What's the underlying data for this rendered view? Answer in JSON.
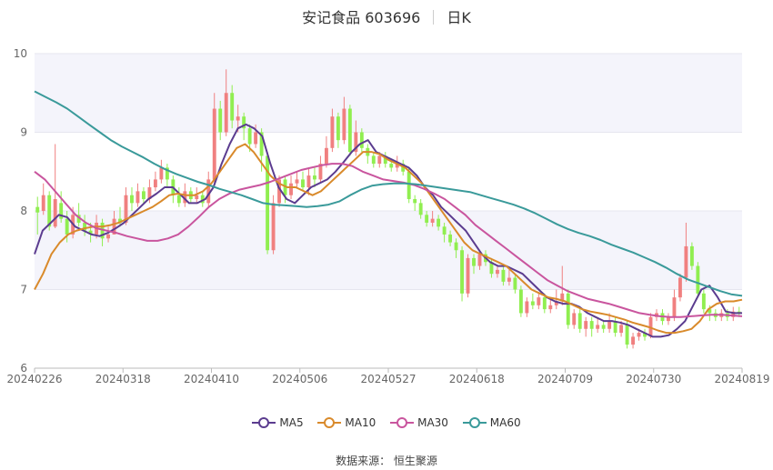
{
  "chart_data": {
    "type": "candlestick",
    "title_name": "安记食品 603696",
    "title_period": "日K",
    "ylim": [
      6,
      10
    ],
    "yticks": [
      "10",
      "9",
      "8",
      "7",
      "6"
    ],
    "xticks": [
      "20240226",
      "20240318",
      "20240410",
      "20240506",
      "20240527",
      "20240618",
      "20240709",
      "20240730",
      "20240819"
    ],
    "up_color": "#f08080",
    "down_color": "#90ee50",
    "candles": [
      [
        8.05,
        7.98,
        8.18,
        7.7
      ],
      [
        8.0,
        8.2,
        8.35,
        7.95
      ],
      [
        8.2,
        7.8,
        8.25,
        7.75
      ],
      [
        7.8,
        8.15,
        8.85,
        7.78
      ],
      [
        8.1,
        7.9,
        8.25,
        7.85
      ],
      [
        7.9,
        7.7,
        8.0,
        7.6
      ],
      [
        7.7,
        7.95,
        8.05,
        7.65
      ],
      [
        7.95,
        7.85,
        8.1,
        7.8
      ],
      [
        7.85,
        7.75,
        7.95,
        7.68
      ],
      [
        7.75,
        7.7,
        7.85,
        7.6
      ],
      [
        7.7,
        7.85,
        7.95,
        7.65
      ],
      [
        7.85,
        7.65,
        7.9,
        7.55
      ],
      [
        7.65,
        7.7,
        7.8,
        7.6
      ],
      [
        7.7,
        7.9,
        8.0,
        7.7
      ],
      [
        7.9,
        7.85,
        8.05,
        7.8
      ],
      [
        7.85,
        8.2,
        8.3,
        7.82
      ],
      [
        8.2,
        8.1,
        8.3,
        8.0
      ],
      [
        8.1,
        8.25,
        8.35,
        8.05
      ],
      [
        8.25,
        8.15,
        8.3,
        8.1
      ],
      [
        8.15,
        8.3,
        8.4,
        8.1
      ],
      [
        8.3,
        8.4,
        8.5,
        8.25
      ],
      [
        8.4,
        8.55,
        8.65,
        8.35
      ],
      [
        8.55,
        8.4,
        8.6,
        8.3
      ],
      [
        8.4,
        8.2,
        8.45,
        8.1
      ],
      [
        8.2,
        8.1,
        8.3,
        8.05
      ],
      [
        8.1,
        8.25,
        8.35,
        8.05
      ],
      [
        8.25,
        8.15,
        8.3,
        8.1
      ],
      [
        8.15,
        8.2,
        8.3,
        8.1
      ],
      [
        8.2,
        8.1,
        8.25,
        8.05
      ],
      [
        8.1,
        8.4,
        8.5,
        8.05
      ],
      [
        8.4,
        9.3,
        9.5,
        8.35
      ],
      [
        9.3,
        9.0,
        9.4,
        8.9
      ],
      [
        9.0,
        9.5,
        9.8,
        8.95
      ],
      [
        9.5,
        9.15,
        9.6,
        9.05
      ],
      [
        9.15,
        9.2,
        9.35,
        9.0
      ],
      [
        9.2,
        9.05,
        9.25,
        8.9
      ],
      [
        9.05,
        8.85,
        9.1,
        8.75
      ],
      [
        8.85,
        9.0,
        9.1,
        8.8
      ],
      [
        9.0,
        8.7,
        9.05,
        8.5
      ],
      [
        8.7,
        7.5,
        8.75,
        7.45
      ],
      [
        7.5,
        8.1,
        8.2,
        7.45
      ],
      [
        8.1,
        8.4,
        8.45,
        8.05
      ],
      [
        8.4,
        8.2,
        8.45,
        8.1
      ],
      [
        8.2,
        8.35,
        8.45,
        8.15
      ],
      [
        8.35,
        8.4,
        8.5,
        8.3
      ],
      [
        8.4,
        8.3,
        8.5,
        8.25
      ],
      [
        8.3,
        8.45,
        8.55,
        8.2
      ],
      [
        8.45,
        8.4,
        8.55,
        8.3
      ],
      [
        8.4,
        8.6,
        8.7,
        8.35
      ],
      [
        8.6,
        8.8,
        8.95,
        8.55
      ],
      [
        8.8,
        9.2,
        9.3,
        8.75
      ],
      [
        9.2,
        8.9,
        9.25,
        8.8
      ],
      [
        8.9,
        9.3,
        9.45,
        8.85
      ],
      [
        9.3,
        8.75,
        9.35,
        8.7
      ],
      [
        8.75,
        9.0,
        9.15,
        8.7
      ],
      [
        9.0,
        8.8,
        9.05,
        8.75
      ],
      [
        8.8,
        8.7,
        8.85,
        8.6
      ],
      [
        8.7,
        8.6,
        8.75,
        8.55
      ],
      [
        8.6,
        8.7,
        8.75,
        8.55
      ],
      [
        8.7,
        8.6,
        8.75,
        8.55
      ],
      [
        8.6,
        8.55,
        8.65,
        8.5
      ],
      [
        8.55,
        8.6,
        8.7,
        8.5
      ],
      [
        8.6,
        8.5,
        8.65,
        8.45
      ],
      [
        8.5,
        8.15,
        8.55,
        8.1
      ],
      [
        8.15,
        8.1,
        8.2,
        8.0
      ],
      [
        8.1,
        7.95,
        8.15,
        7.9
      ],
      [
        7.95,
        7.85,
        8.0,
        7.8
      ],
      [
        7.85,
        7.9,
        8.0,
        7.8
      ],
      [
        7.9,
        7.8,
        7.95,
        7.75
      ],
      [
        7.8,
        7.7,
        7.85,
        7.6
      ],
      [
        7.7,
        7.6,
        7.75,
        7.55
      ],
      [
        7.6,
        7.5,
        7.65,
        7.4
      ],
      [
        7.5,
        6.95,
        7.55,
        6.85
      ],
      [
        6.95,
        7.4,
        7.45,
        6.9
      ],
      [
        7.4,
        7.3,
        7.45,
        7.2
      ],
      [
        7.3,
        7.45,
        7.5,
        7.25
      ],
      [
        7.45,
        7.35,
        7.5,
        7.3
      ],
      [
        7.35,
        7.2,
        7.4,
        7.15
      ],
      [
        7.2,
        7.25,
        7.3,
        7.15
      ],
      [
        7.25,
        7.1,
        7.3,
        7.05
      ],
      [
        7.1,
        7.15,
        7.25,
        7.05
      ],
      [
        7.15,
        7.0,
        7.2,
        6.95
      ],
      [
        7.0,
        6.7,
        7.05,
        6.65
      ],
      [
        6.7,
        6.85,
        6.9,
        6.65
      ],
      [
        6.85,
        6.8,
        6.95,
        6.75
      ],
      [
        6.8,
        6.9,
        6.95,
        6.75
      ],
      [
        6.9,
        6.75,
        6.95,
        6.7
      ],
      [
        6.75,
        6.8,
        6.9,
        6.7
      ],
      [
        6.8,
        6.85,
        7.0,
        6.75
      ],
      [
        6.85,
        6.95,
        7.3,
        6.8
      ],
      [
        6.95,
        6.55,
        7.0,
        6.5
      ],
      [
        6.55,
        6.7,
        6.75,
        6.5
      ],
      [
        6.7,
        6.5,
        6.75,
        6.45
      ],
      [
        6.5,
        6.6,
        6.65,
        6.4
      ],
      [
        6.6,
        6.5,
        6.65,
        6.4
      ],
      [
        6.5,
        6.55,
        6.65,
        6.45
      ],
      [
        6.55,
        6.5,
        6.6,
        6.45
      ],
      [
        6.5,
        6.6,
        6.7,
        6.45
      ],
      [
        6.6,
        6.45,
        6.65,
        6.4
      ],
      [
        6.45,
        6.55,
        6.6,
        6.4
      ],
      [
        6.55,
        6.3,
        6.6,
        6.25
      ],
      [
        6.3,
        6.4,
        6.45,
        6.25
      ],
      [
        6.4,
        6.45,
        6.5,
        6.35
      ],
      [
        6.45,
        6.4,
        6.5,
        6.35
      ],
      [
        6.4,
        6.65,
        6.7,
        6.38
      ],
      [
        6.65,
        6.7,
        6.75,
        6.6
      ],
      [
        6.7,
        6.6,
        6.75,
        6.55
      ],
      [
        6.6,
        6.65,
        6.7,
        6.55
      ],
      [
        6.65,
        6.9,
        7.0,
        6.6
      ],
      [
        6.9,
        7.15,
        7.2,
        6.85
      ],
      [
        7.15,
        7.55,
        7.85,
        7.1
      ],
      [
        7.55,
        7.3,
        7.6,
        7.25
      ],
      [
        7.3,
        6.95,
        7.35,
        6.9
      ],
      [
        6.95,
        6.75,
        7.0,
        6.7
      ],
      [
        6.75,
        6.7,
        6.8,
        6.6
      ],
      [
        6.7,
        6.65,
        6.75,
        6.6
      ],
      [
        6.65,
        6.7,
        6.75,
        6.6
      ],
      [
        6.7,
        6.65,
        6.75,
        6.6
      ],
      [
        6.65,
        6.72,
        6.78,
        6.6
      ],
      [
        6.72,
        6.7,
        6.78,
        6.65
      ]
    ],
    "series": [
      {
        "name": "MA5",
        "color": "#5b3c8f",
        "values": [
          7.45,
          7.75,
          7.85,
          7.95,
          7.92,
          7.8,
          7.75,
          7.7,
          7.68,
          7.72,
          7.78,
          7.85,
          7.95,
          8.05,
          8.15,
          8.22,
          8.3,
          8.3,
          8.2,
          8.1,
          8.1,
          8.15,
          8.3,
          8.6,
          8.85,
          9.05,
          9.1,
          9.05,
          8.95,
          8.6,
          8.3,
          8.15,
          8.1,
          8.2,
          8.3,
          8.35,
          8.4,
          8.5,
          8.62,
          8.75,
          8.85,
          8.9,
          8.75,
          8.7,
          8.65,
          8.6,
          8.55,
          8.45,
          8.3,
          8.2,
          8.05,
          7.95,
          7.85,
          7.75,
          7.6,
          7.45,
          7.35,
          7.3,
          7.3,
          7.25,
          7.2,
          7.1,
          7.0,
          6.9,
          6.85,
          6.82,
          6.82,
          6.78,
          6.7,
          6.65,
          6.6,
          6.6,
          6.58,
          6.55,
          6.5,
          6.45,
          6.4,
          6.4,
          6.42,
          6.5,
          6.6,
          6.8,
          7.0,
          7.05,
          6.9,
          6.72,
          6.7,
          6.7
        ]
      },
      {
        "name": "MA10",
        "color": "#d98a2b",
        "values": [
          7.0,
          7.2,
          7.45,
          7.6,
          7.7,
          7.75,
          7.78,
          7.8,
          7.8,
          7.82,
          7.85,
          7.9,
          7.95,
          8.0,
          8.05,
          8.12,
          8.2,
          8.22,
          8.2,
          8.2,
          8.25,
          8.35,
          8.5,
          8.65,
          8.8,
          8.85,
          8.75,
          8.6,
          8.45,
          8.35,
          8.3,
          8.3,
          8.25,
          8.2,
          8.25,
          8.35,
          8.45,
          8.55,
          8.65,
          8.75,
          8.75,
          8.72,
          8.65,
          8.6,
          8.55,
          8.45,
          8.35,
          8.2,
          8.05,
          7.9,
          7.75,
          7.6,
          7.5,
          7.45,
          7.4,
          7.35,
          7.3,
          7.2,
          7.1,
          7.0,
          6.95,
          6.9,
          6.88,
          6.85,
          6.8,
          6.75,
          6.72,
          6.7,
          6.68,
          6.65,
          6.62,
          6.58,
          6.55,
          6.52,
          6.48,
          6.45,
          6.45,
          6.47,
          6.5,
          6.6,
          6.75,
          6.82,
          6.85,
          6.85,
          6.87
        ]
      },
      {
        "name": "MA30",
        "color": "#c9559e",
        "values": [
          8.5,
          8.4,
          8.25,
          8.1,
          7.95,
          7.85,
          7.78,
          7.75,
          7.72,
          7.68,
          7.65,
          7.62,
          7.62,
          7.65,
          7.7,
          7.8,
          7.92,
          8.05,
          8.15,
          8.22,
          8.27,
          8.3,
          8.33,
          8.37,
          8.42,
          8.47,
          8.52,
          8.55,
          8.58,
          8.6,
          8.6,
          8.57,
          8.5,
          8.45,
          8.4,
          8.38,
          8.36,
          8.33,
          8.28,
          8.22,
          8.15,
          8.05,
          7.95,
          7.82,
          7.72,
          7.62,
          7.52,
          7.42,
          7.32,
          7.22,
          7.12,
          7.05,
          6.98,
          6.93,
          6.88,
          6.85,
          6.82,
          6.78,
          6.74,
          6.7,
          6.68,
          6.66,
          6.65,
          6.65,
          6.66,
          6.67,
          6.68,
          6.68,
          6.67,
          6.66
        ]
      },
      {
        "name": "MA60",
        "color": "#3a9a9a",
        "values": [
          9.52,
          9.45,
          9.38,
          9.3,
          9.2,
          9.1,
          9.0,
          8.9,
          8.82,
          8.75,
          8.68,
          8.6,
          8.53,
          8.47,
          8.42,
          8.37,
          8.33,
          8.28,
          8.24,
          8.2,
          8.15,
          8.1,
          8.08,
          8.07,
          8.06,
          8.05,
          8.06,
          8.08,
          8.12,
          8.2,
          8.27,
          8.32,
          8.34,
          8.35,
          8.35,
          8.34,
          8.32,
          8.3,
          8.28,
          8.26,
          8.24,
          8.2,
          8.16,
          8.12,
          8.08,
          8.03,
          7.97,
          7.9,
          7.83,
          7.77,
          7.72,
          7.68,
          7.63,
          7.57,
          7.52,
          7.47,
          7.41,
          7.35,
          7.28,
          7.2,
          7.13,
          7.08,
          7.03,
          6.98,
          6.94,
          6.92
        ]
      }
    ],
    "legend": [
      "MA5",
      "MA10",
      "MA30",
      "MA60"
    ],
    "source": "数据来源： 恒生聚源"
  }
}
